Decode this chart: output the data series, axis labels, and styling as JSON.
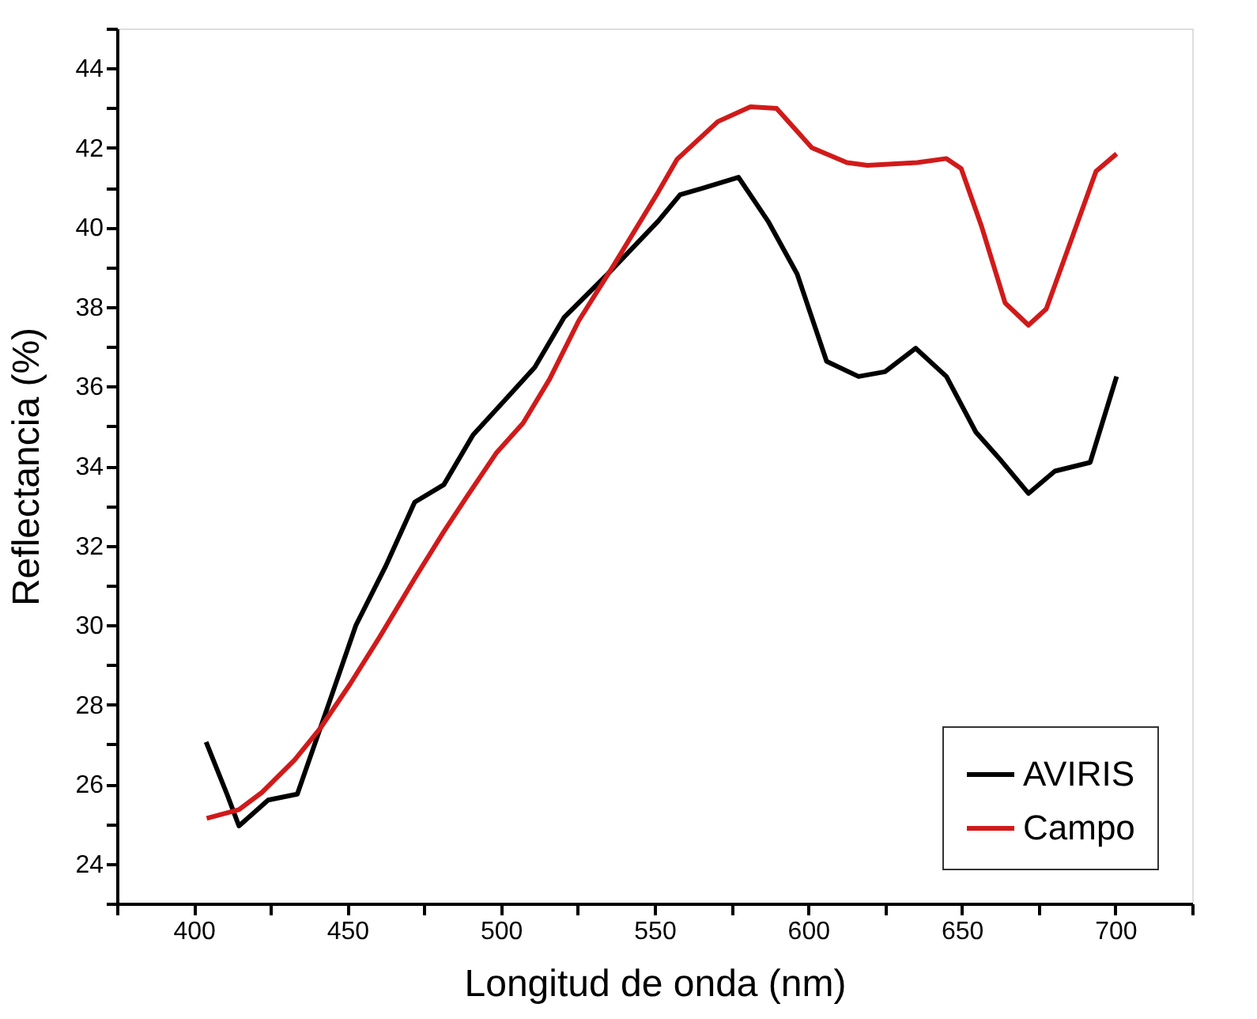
{
  "chart_data": {
    "type": "line",
    "xlabel": "Longitud de onda (nm)",
    "ylabel": "Reflectancia (%)",
    "xlim": [
      375,
      725
    ],
    "ylim": [
      23,
      45
    ],
    "xticks": [
      {
        "value": 375,
        "label": null
      },
      400,
      {
        "value": 425,
        "label": null
      },
      450,
      {
        "value": 475,
        "label": null
      },
      500,
      {
        "value": 525,
        "label": null
      },
      550,
      {
        "value": 575,
        "label": null
      },
      600,
      {
        "value": 625,
        "label": null
      },
      650,
      {
        "value": 675,
        "label": null
      },
      700,
      {
        "value": 725,
        "label": null
      }
    ],
    "yticks": [
      {
        "value": 23,
        "label": null
      },
      24,
      {
        "value": 25,
        "label": null
      },
      26,
      {
        "value": 27,
        "label": null
      },
      28,
      {
        "value": 29,
        "label": null
      },
      30,
      {
        "value": 31,
        "label": null
      },
      32,
      {
        "value": 33,
        "label": null
      },
      34,
      {
        "value": 35,
        "label": null
      },
      36,
      {
        "value": 37,
        "label": null
      },
      38,
      {
        "value": 39,
        "label": null
      },
      40,
      {
        "value": 41,
        "label": null
      },
      42,
      {
        "value": 43,
        "label": null
      },
      44,
      {
        "value": 45,
        "label": null
      }
    ],
    "grid": false,
    "legend": "bottom right",
    "marker": "none",
    "line_style": "solid",
    "series": [
      {
        "name": "AVIRIS",
        "color": "#000000",
        "x": [
          404,
          410.9,
          414.7,
          424.2,
          433.7,
          444.2,
          452.8,
          462.4,
          471.9,
          481.4,
          490.9,
          500.5,
          511,
          520.5,
          534.8,
          551.2,
          558.3,
          565,
          577.3,
          586.9,
          596.4,
          606,
          616.4,
          625,
          635,
          645,
          654.6,
          662.2,
          671.7,
          680.3,
          691.8,
          700.4
        ],
        "values": [
          27.06,
          25.73,
          24.95,
          25.6,
          25.75,
          28.08,
          30.0,
          31.47,
          33.09,
          33.53,
          34.78,
          35.59,
          36.48,
          37.73,
          38.83,
          40.16,
          40.82,
          40.97,
          41.26,
          40.16,
          38.83,
          36.63,
          36.25,
          36.37,
          36.96,
          36.25,
          34.85,
          34.19,
          33.31,
          33.87,
          34.09,
          36.25
        ]
      },
      {
        "name": "Campo",
        "color": "#d11a1a",
        "x": [
          404.2,
          414.7,
          422.3,
          432.8,
          441.3,
          450.9,
          460.5,
          471.9,
          481.4,
          489,
          498.6,
          507.2,
          515.8,
          525.3,
          536.7,
          551.2,
          557.3,
          570.6,
          581.2,
          589.7,
          601.2,
          612.6,
          619.3,
          635.5,
          645,
          649.8,
          656.5,
          664.1,
          671.7,
          677.5,
          685.1,
          693.7,
          700.4
        ],
        "values": [
          25.14,
          25.36,
          25.8,
          26.61,
          27.42,
          28.52,
          29.7,
          31.17,
          32.35,
          33.24,
          34.34,
          35.08,
          36.18,
          37.65,
          39.05,
          40.89,
          41.71,
          42.66,
          43.03,
          42.99,
          42.0,
          41.63,
          41.56,
          41.63,
          41.73,
          41.48,
          40.01,
          38.1,
          37.54,
          37.95,
          39.57,
          41.41,
          41.85
        ]
      }
    ]
  }
}
